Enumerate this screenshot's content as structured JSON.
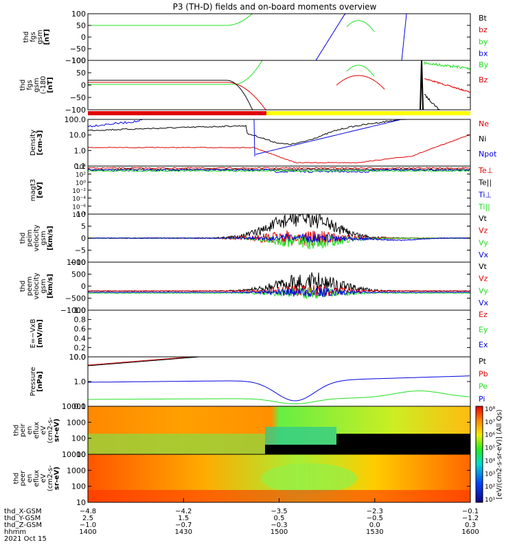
{
  "title": "P3 (TH-D) fields and on-board moments overview",
  "colors": {
    "black": "#000000",
    "red": "#e00000",
    "green": "#20e020",
    "blue": "#0000e0",
    "yellow": "#ffff00"
  },
  "chart_data": [
    {
      "id": "fgs_gsm",
      "type": "line",
      "ylabel": [
        "thd",
        "fgs",
        "gsm",
        "[nT]"
      ],
      "ylim": [
        -100,
        100
      ],
      "yticks": [
        "100",
        "50",
        "0",
        "−50",
        "−100"
      ],
      "legend": [
        {
          "name": "Bt",
          "color": "black"
        },
        {
          "name": "bz",
          "color": "red"
        },
        {
          "name": "by",
          "color": "green"
        },
        {
          "name": "bx",
          "color": "blue"
        }
      ]
    },
    {
      "id": "fgs_gsm_deg",
      "type": "line",
      "ylabel": [
        "thd",
        "fgs",
        "gsm",
        "(-180",
        "[nT]"
      ],
      "ylim": [
        -120,
        120
      ],
      "yticks": [
        "100",
        "50",
        "0",
        "−50",
        "−100"
      ],
      "legend": [
        {
          "name": "By",
          "color": "green"
        },
        {
          "name": "Bz",
          "color": "red"
        }
      ]
    },
    {
      "id": "density",
      "type": "line",
      "ylabel": [
        "Density",
        "[cm-3]"
      ],
      "yscale": "log",
      "ylim": [
        0.1,
        100
      ],
      "yticks": [
        "100.0",
        "10.0",
        "1.0",
        "0.1"
      ],
      "legend": [
        {
          "name": "Ne",
          "color": "red"
        },
        {
          "name": "Ni",
          "color": "black"
        },
        {
          "name": "Npot",
          "color": "blue"
        }
      ]
    },
    {
      "id": "temp",
      "type": "line",
      "ylabel": [
        "magt3",
        "[eV]"
      ],
      "yscale": "log",
      "yticks": [
        "10⁴",
        "10²",
        "10⁰",
        "10⁻²",
        "10⁻⁴",
        "10⁻⁶",
        "10⁻⁸"
      ],
      "legend": [
        {
          "name": "Te⊥",
          "color": "red"
        },
        {
          "name": "Te||",
          "color": "black"
        },
        {
          "name": "Ti⊥",
          "color": "blue"
        },
        {
          "name": "Ti||",
          "color": "green"
        }
      ]
    },
    {
      "id": "peim_velocity",
      "type": "line",
      "ylabel": [
        "thd",
        "peim",
        "velocity",
        "gsm",
        "[km/s]"
      ],
      "ylim": [
        -10,
        10
      ],
      "yticks": [
        "10",
        "5",
        "0",
        "−5",
        "−10"
      ],
      "legend": [
        {
          "name": "Vt",
          "color": "black"
        },
        {
          "name": "Vz",
          "color": "red"
        },
        {
          "name": "Vy",
          "color": "green"
        },
        {
          "name": "Vx",
          "color": "blue"
        }
      ]
    },
    {
      "id": "peem_velocity",
      "type": "line",
      "ylabel": [
        "thd",
        "peem",
        "velocity",
        "gsm",
        "[km/s]"
      ],
      "ylim": [
        -1000,
        1000
      ],
      "yticks": [
        "1000",
        "500",
        "0",
        "−500",
        "−1000"
      ],
      "legend": [
        {
          "name": "Vt",
          "color": "black"
        },
        {
          "name": "Vz",
          "color": "red"
        },
        {
          "name": "Vy",
          "color": "green"
        },
        {
          "name": "Vx",
          "color": "blue"
        }
      ]
    },
    {
      "id": "efield",
      "type": "line",
      "ylabel": [
        "E=−VxB",
        "[mV/m]"
      ],
      "ylim": [
        0,
        1
      ],
      "yticks": [
        "1.0",
        "0.8",
        "0.6",
        "0.4",
        "0.2",
        "0.0"
      ],
      "legend": [
        {
          "name": "Ez",
          "color": "red"
        },
        {
          "name": "Ey",
          "color": "green"
        },
        {
          "name": "Ex",
          "color": "blue"
        }
      ]
    },
    {
      "id": "pressure",
      "type": "line",
      "ylabel": [
        "Pressure",
        "[nPa]"
      ],
      "yscale": "log",
      "ylim": [
        0.03,
        30
      ],
      "yticks": [
        "10.0",
        "1.0",
        "0.1"
      ],
      "legend": [
        {
          "name": "Pt",
          "color": "black"
        },
        {
          "name": "Pb",
          "color": "red"
        },
        {
          "name": "Pe",
          "color": "green"
        },
        {
          "name": "Pi",
          "color": "blue"
        }
      ]
    },
    {
      "id": "peir_eflux",
      "type": "heatmap",
      "ylabel": [
        "thd",
        "peir",
        "en",
        "eflux",
        "eV",
        "(cm2-s-",
        "sr-eV)"
      ],
      "yscale": "log",
      "ylim": [
        6,
        20000
      ],
      "yticks": [
        "10000",
        "1000",
        "100",
        "10"
      ]
    },
    {
      "id": "peer_eflux",
      "type": "heatmap",
      "ylabel": [
        "thd",
        "peer",
        "en",
        "eflux",
        "eV",
        "(cm2-s-",
        "sr-eV)"
      ],
      "yscale": "log",
      "ylim": [
        6,
        20000
      ],
      "yticks": [
        "10000",
        "1000",
        "100",
        "10"
      ]
    }
  ],
  "colorbar": {
    "label": "[eV/(cm2-s-sr-eV)] (All Qs)",
    "ticks": [
      "10⁸",
      "10⁷",
      "10⁶",
      "10⁵",
      "10⁴",
      "10³",
      "10²",
      "10¹"
    ]
  },
  "x_axis": {
    "rows": [
      {
        "name": "thd_X-GSM",
        "values": [
          "−4.8",
          "−4.2",
          "−3.5",
          "−2.3",
          "−0.1"
        ]
      },
      {
        "name": "thd_Y-GSM",
        "values": [
          "2.5",
          "1.5",
          "0.5",
          "−0.5",
          "−1.2"
        ]
      },
      {
        "name": "thd_Z-GSM",
        "values": [
          "−1.0",
          "−0.7",
          "−0.3",
          "0.0",
          "0.3"
        ]
      },
      {
        "name": "hhmm",
        "values": [
          "1400",
          "1430",
          "1500",
          "1530",
          "1600"
        ]
      }
    ],
    "date": "2021 Oct 15"
  }
}
